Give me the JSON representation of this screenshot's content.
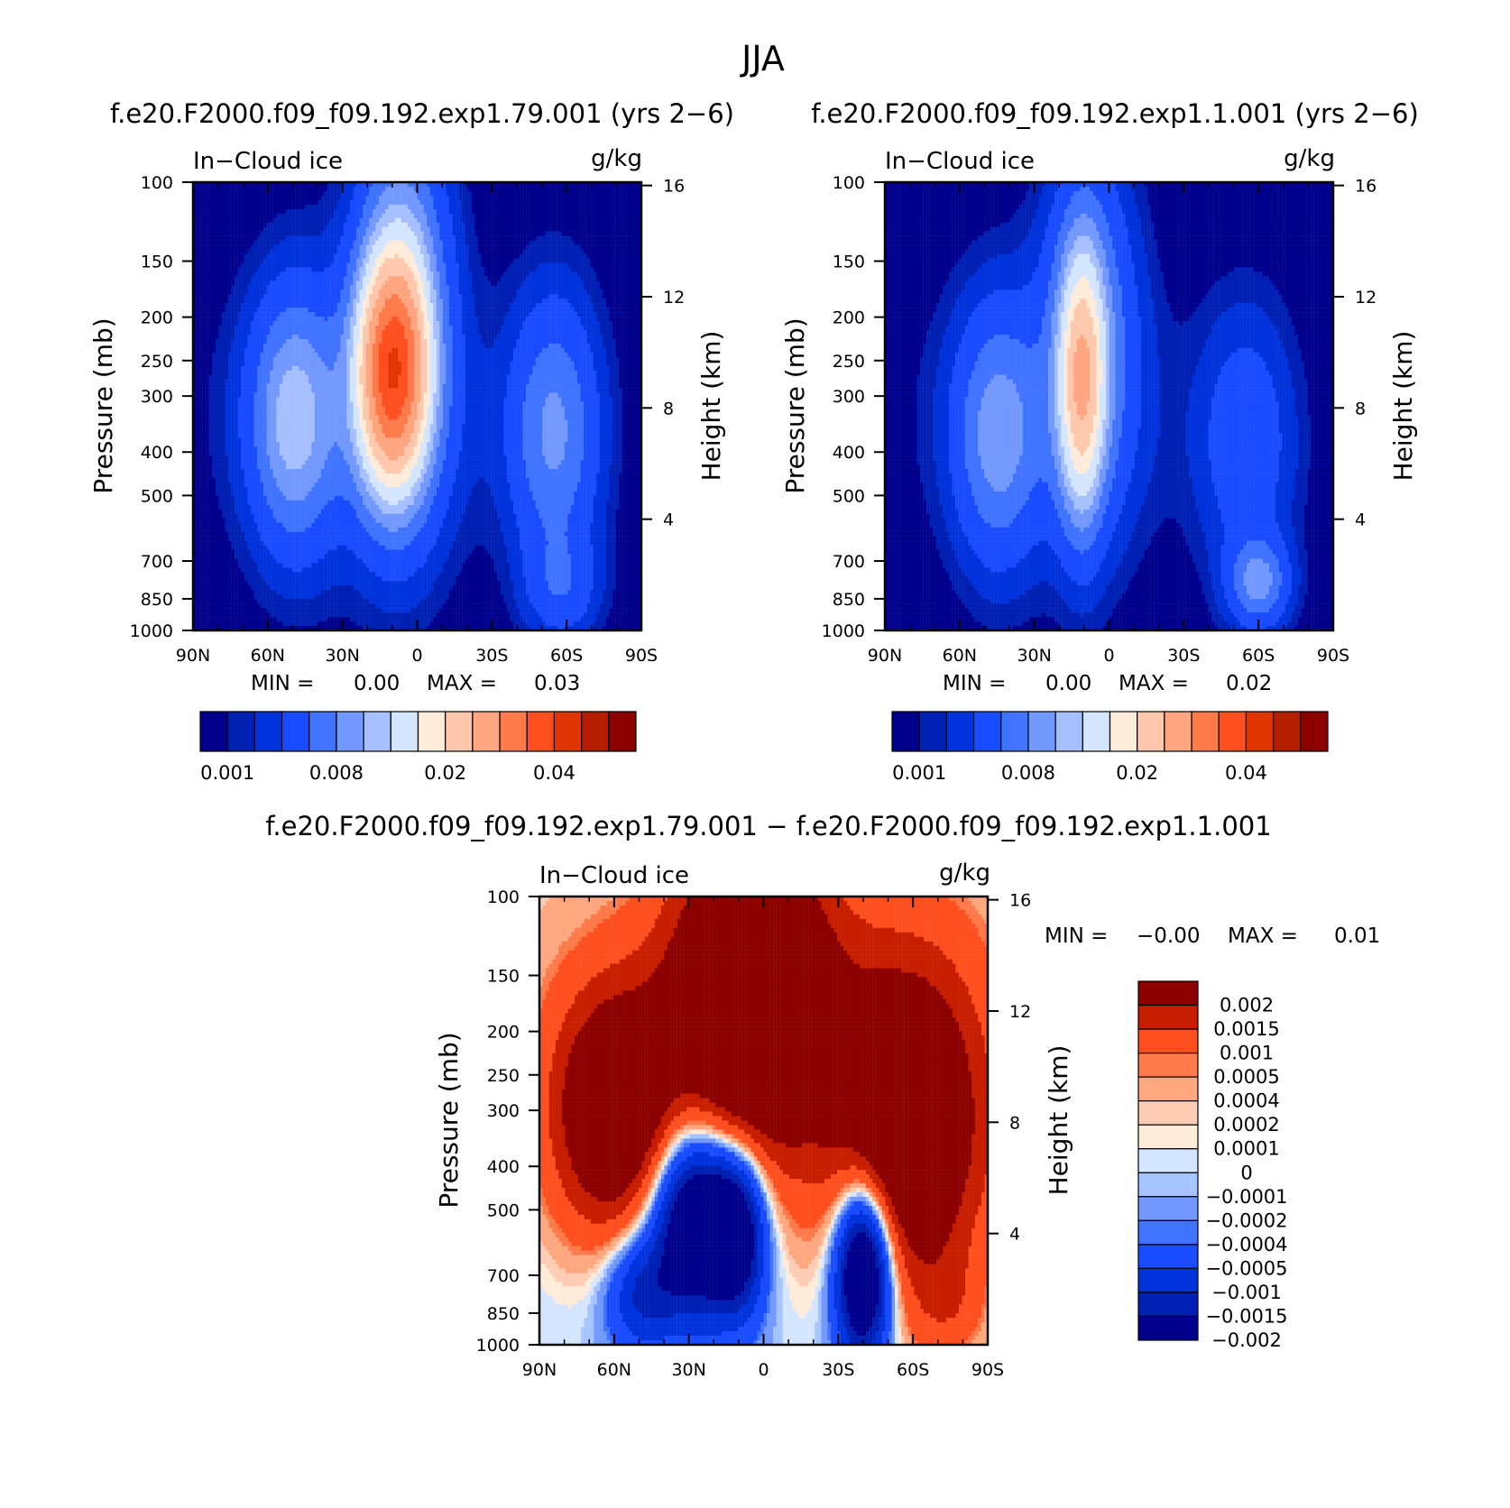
{
  "figure": {
    "title": "JJA",
    "subtitle_diff": "f.e20.F2000.f09_f09.192.exp1.79.001 − f.e20.F2000.f09_f09.192.exp1.1.001"
  },
  "colors": {
    "seq": [
      "#00008c",
      "#0020b4",
      "#0033dc",
      "#1a4cff",
      "#4073ff",
      "#7399ff",
      "#a6bfff",
      "#d4e6ff",
      "#ffebd9",
      "#ffc8ad",
      "#ffa57f",
      "#ff7a4a",
      "#ff4f1f",
      "#e03500",
      "#b41d00",
      "#8c0000"
    ],
    "diff": [
      "#00008c",
      "#0020b4",
      "#0033dc",
      "#1a4cff",
      "#4073ff",
      "#7399ff",
      "#a6c4ff",
      "#d4e6ff",
      "#ffebd9",
      "#ffcdb3",
      "#ffa880",
      "#ff7a4a",
      "#ff4f1f",
      "#c81e00",
      "#8c0000"
    ]
  },
  "chart_data": [
    {
      "type": "heatmap",
      "title": "f.e20.F2000.f09_f09.192.exp1.79.001 (yrs 2−6)",
      "left_label": "In−Cloud ice",
      "right_label": "g/kg",
      "ylabel": "Pressure (mb)",
      "y2label": "Height (km)",
      "x_ticks": [
        "90N",
        "60N",
        "30N",
        "0",
        "30S",
        "60S",
        "90S"
      ],
      "xlim": [
        -90,
        90
      ],
      "y_ticks": [
        "100",
        "150",
        "200",
        "250",
        "300",
        "400",
        "500",
        "700",
        "850",
        "1000"
      ],
      "ylim": [
        1000,
        100
      ],
      "height_ticks": [
        "16",
        "12",
        "8",
        "4"
      ],
      "stats": {
        "min_label": "MIN =",
        "min": "0.00",
        "max_label": "MAX =",
        "max": "0.03"
      },
      "colorbar_labels": [
        "0.001",
        "0.008",
        "0.02",
        "0.04"
      ],
      "field": {
        "kind": "ctrl",
        "peak": 0.028
      },
      "levels": [
        0.0005,
        0.001,
        0.002,
        0.004,
        0.006,
        0.008,
        0.01,
        0.013,
        0.016,
        0.02,
        0.025,
        0.03,
        0.035,
        0.04,
        0.045
      ]
    },
    {
      "type": "heatmap",
      "title": "f.e20.F2000.f09_f09.192.exp1.1.001 (yrs 2−6)",
      "left_label": "In−Cloud ice",
      "right_label": "g/kg",
      "ylabel": "Pressure (mb)",
      "y2label": "Height (km)",
      "x_ticks": [
        "90N",
        "60N",
        "30N",
        "0",
        "30S",
        "60S",
        "90S"
      ],
      "xlim": [
        -90,
        90
      ],
      "y_ticks": [
        "100",
        "150",
        "200",
        "250",
        "300",
        "400",
        "500",
        "700",
        "850",
        "1000"
      ],
      "ylim": [
        1000,
        100
      ],
      "height_ticks": [
        "16",
        "12",
        "8",
        "4"
      ],
      "stats": {
        "min_label": "MIN =",
        "min": "0.00",
        "max_label": "MAX =",
        "max": "0.02"
      },
      "colorbar_labels": [
        "0.001",
        "0.008",
        "0.02",
        "0.04"
      ],
      "field": {
        "kind": "exp",
        "peak": 0.018
      },
      "levels": [
        0.0005,
        0.001,
        0.002,
        0.004,
        0.006,
        0.008,
        0.01,
        0.013,
        0.016,
        0.02,
        0.025,
        0.03,
        0.035,
        0.04,
        0.045
      ]
    },
    {
      "type": "heatmap",
      "title": "f.e20.F2000.f09_f09.192.exp1.79.001 − f.e20.F2000.f09_f09.192.exp1.1.001",
      "left_label": "In−Cloud ice",
      "right_label": "g/kg",
      "ylabel": "Pressure (mb)",
      "y2label": "Height (km)",
      "x_ticks": [
        "90N",
        "60N",
        "30N",
        "0",
        "30S",
        "60S",
        "90S"
      ],
      "xlim": [
        -90,
        90
      ],
      "y_ticks": [
        "100",
        "150",
        "200",
        "250",
        "300",
        "400",
        "500",
        "700",
        "850",
        "1000"
      ],
      "ylim": [
        1000,
        100
      ],
      "height_ticks": [
        "16",
        "12",
        "8",
        "4"
      ],
      "stats": {
        "min_label": "MIN =",
        "min": "−0.00",
        "max_label": "MAX =",
        "max": "0.01"
      },
      "colorbar_labels": [
        "0.002",
        "0.0015",
        "0.001",
        "0.0005",
        "0.0004",
        "0.0002",
        "0.0001",
        "0",
        "−0.0001",
        "−0.0002",
        "−0.0004",
        "−0.0005",
        "−0.001",
        "−0.0015",
        "−0.002"
      ],
      "field": {
        "kind": "diff"
      },
      "levels": [
        -0.002,
        -0.0015,
        -0.001,
        -0.0005,
        -0.0004,
        -0.0002,
        -0.0001,
        0,
        0.0001,
        0.0002,
        0.0004,
        0.0005,
        0.001,
        0.0015
      ]
    }
  ]
}
